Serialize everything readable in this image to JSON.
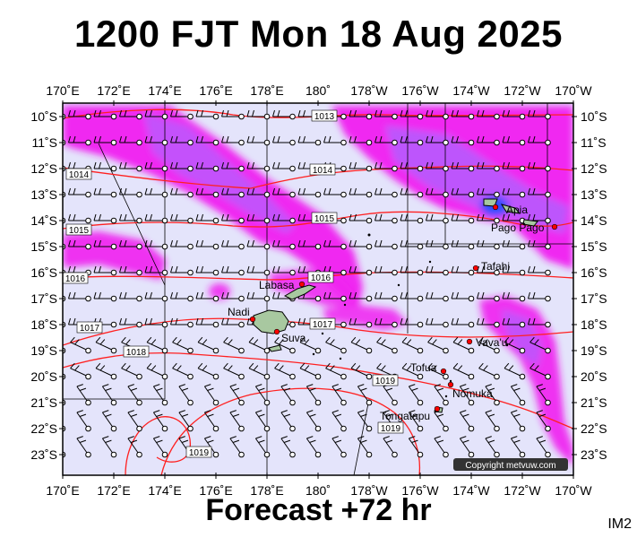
{
  "header": {
    "title": "1200 FJT Mon 18 Aug 2025"
  },
  "footer": {
    "forecast": "Forecast +72 hr",
    "image_id": "IM2"
  },
  "map": {
    "lon_labels": [
      "170˚E",
      "172˚E",
      "174˚E",
      "176˚E",
      "178˚E",
      "180˚",
      "178˚W",
      "176˚W",
      "174˚W",
      "172˚W",
      "170˚W"
    ],
    "lat_labels": [
      "10˚S",
      "11˚S",
      "12˚S",
      "13˚S",
      "14˚S",
      "15˚S",
      "16˚S",
      "17˚S",
      "18˚S",
      "19˚S",
      "20˚S",
      "21˚S",
      "22˚S",
      "23˚S"
    ],
    "isobars": [
      {
        "label": "1013"
      },
      {
        "label": "1014"
      },
      {
        "label": "1014"
      },
      {
        "label": "1015"
      },
      {
        "label": "1015"
      },
      {
        "label": "1016"
      },
      {
        "label": "1016"
      },
      {
        "label": "1017"
      },
      {
        "label": "1017"
      },
      {
        "label": "1018"
      },
      {
        "label": "1019"
      },
      {
        "label": "1019"
      },
      {
        "label": "1019"
      }
    ],
    "places": [
      {
        "name": "Apia"
      },
      {
        "name": "Pago Pago"
      },
      {
        "name": "Tafahi"
      },
      {
        "name": "Labasa"
      },
      {
        "name": "Nadi"
      },
      {
        "name": "Suva"
      },
      {
        "name": "Vava'u"
      },
      {
        "name": "Tofua"
      },
      {
        "name": "Nomuka"
      },
      {
        "name": "Tongatapu"
      }
    ],
    "copyright": "Copyright metvuw.com",
    "colors": {
      "background": "#e4e4fb",
      "rain_light": "#ff00ff",
      "rain_mid": "#b060ff",
      "rain_heavy": "#5050ff",
      "isobar": "#ff0000",
      "land": "#a8c8a0"
    }
  }
}
